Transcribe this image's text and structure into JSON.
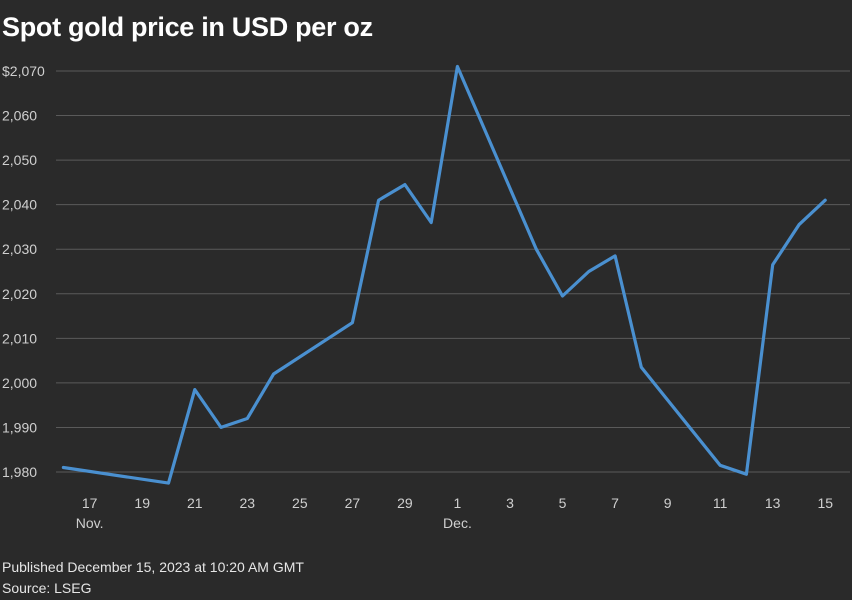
{
  "chart_data": {
    "type": "line",
    "title": "Spot gold price in USD per oz",
    "xlabel": "",
    "ylabel": "",
    "ylim": [
      1977,
      2072
    ],
    "grid": true,
    "colors": {
      "background": "#2a2a2a",
      "line": "#4a90d0",
      "grid": "#5a5a5a"
    },
    "yticks": [
      {
        "value": 1980,
        "label": "1,980"
      },
      {
        "value": 1990,
        "label": "1,990"
      },
      {
        "value": 2000,
        "label": "2,000"
      },
      {
        "value": 2010,
        "label": "2,010"
      },
      {
        "value": 2020,
        "label": "2,020"
      },
      {
        "value": 2030,
        "label": "2,030"
      },
      {
        "value": 2040,
        "label": "2,040"
      },
      {
        "value": 2050,
        "label": "2,050"
      },
      {
        "value": 2060,
        "label": "2,060"
      },
      {
        "value": 2070,
        "label": "$2,070"
      }
    ],
    "xticks": [
      {
        "date": "2023-11-17",
        "label": "17",
        "month": "Nov."
      },
      {
        "date": "2023-11-19",
        "label": "19",
        "month": ""
      },
      {
        "date": "2023-11-21",
        "label": "21",
        "month": ""
      },
      {
        "date": "2023-11-23",
        "label": "23",
        "month": ""
      },
      {
        "date": "2023-11-25",
        "label": "25",
        "month": ""
      },
      {
        "date": "2023-11-27",
        "label": "27",
        "month": ""
      },
      {
        "date": "2023-11-29",
        "label": "29",
        "month": ""
      },
      {
        "date": "2023-12-01",
        "label": "1",
        "month": "Dec."
      },
      {
        "date": "2023-12-03",
        "label": "3",
        "month": ""
      },
      {
        "date": "2023-12-05",
        "label": "5",
        "month": ""
      },
      {
        "date": "2023-12-07",
        "label": "7",
        "month": ""
      },
      {
        "date": "2023-12-09",
        "label": "9",
        "month": ""
      },
      {
        "date": "2023-12-11",
        "label": "11",
        "month": ""
      },
      {
        "date": "2023-12-13",
        "label": "13",
        "month": ""
      },
      {
        "date": "2023-12-15",
        "label": "15",
        "month": ""
      }
    ],
    "series": [
      {
        "name": "",
        "points": [
          {
            "x": "2023-11-16",
            "y": 1981
          },
          {
            "x": "2023-11-20",
            "y": 1977.5
          },
          {
            "x": "2023-11-21",
            "y": 1998.5
          },
          {
            "x": "2023-11-22",
            "y": 1990
          },
          {
            "x": "2023-11-23",
            "y": 1992
          },
          {
            "x": "2023-11-24",
            "y": 2002
          },
          {
            "x": "2023-11-27",
            "y": 2013.5
          },
          {
            "x": "2023-11-28",
            "y": 2041
          },
          {
            "x": "2023-11-29",
            "y": 2044.5
          },
          {
            "x": "2023-11-30",
            "y": 2036
          },
          {
            "x": "2023-12-01",
            "y": 2071
          },
          {
            "x": "2023-12-04",
            "y": 2030
          },
          {
            "x": "2023-12-05",
            "y": 2019.5
          },
          {
            "x": "2023-12-06",
            "y": 2025
          },
          {
            "x": "2023-12-07",
            "y": 2028.5
          },
          {
            "x": "2023-12-08",
            "y": 2003.5
          },
          {
            "x": "2023-12-11",
            "y": 1981.5
          },
          {
            "x": "2023-12-12",
            "y": 1979.5
          },
          {
            "x": "2023-12-13",
            "y": 2026.5
          },
          {
            "x": "2023-12-14",
            "y": 2035.5
          },
          {
            "x": "2023-12-15",
            "y": 2041
          }
        ]
      }
    ]
  },
  "footer": {
    "published": "Published December 15, 2023 at 10:20 AM GMT",
    "source": "Source: LSEG"
  }
}
